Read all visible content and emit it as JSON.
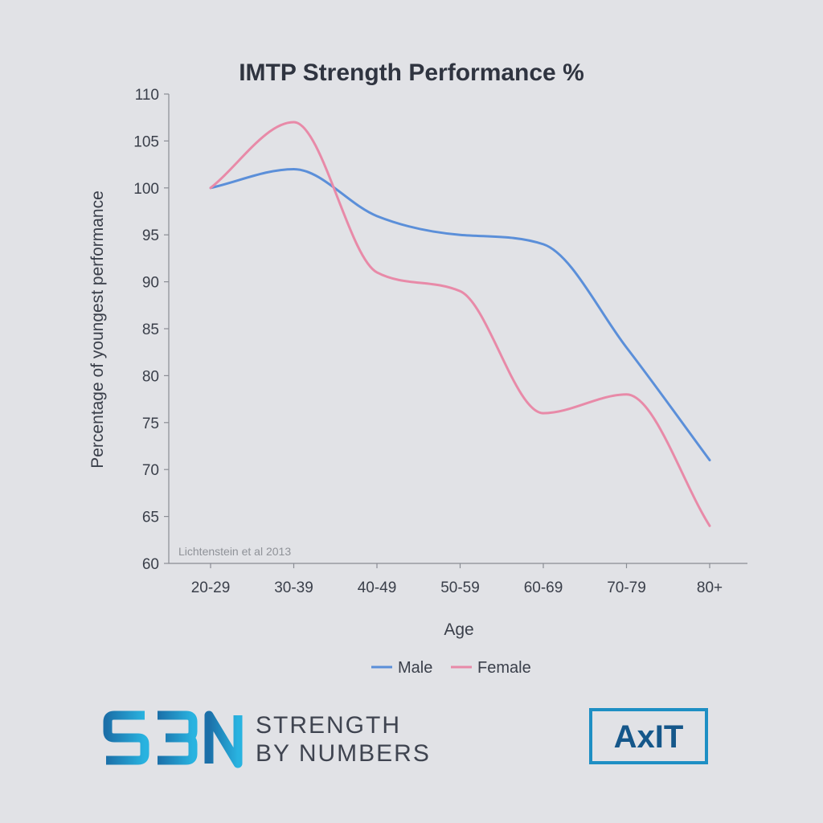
{
  "chart_data": {
    "type": "line",
    "title": "IMTP Strength Performance %",
    "xlabel": "Age",
    "ylabel": "Percentage of youngest performance",
    "categories": [
      "20-29",
      "30-39",
      "40-49",
      "50-59",
      "60-69",
      "70-79",
      "80+"
    ],
    "ylim": [
      60,
      110
    ],
    "yticks": [
      60,
      65,
      70,
      75,
      80,
      85,
      90,
      95,
      100,
      105,
      110
    ],
    "smooth": true,
    "grid": false,
    "legend_position": "bottom",
    "annotation": "Lichtenstein et al 2013",
    "series": [
      {
        "name": "Male",
        "color": "#5b8fd9",
        "values": [
          100,
          102,
          97,
          95,
          94,
          83,
          71
        ]
      },
      {
        "name": "Female",
        "color": "#e88aa8",
        "values": [
          100,
          107,
          91,
          89,
          76,
          78,
          64
        ]
      }
    ]
  },
  "branding": {
    "sbn_mark": "SBN",
    "sbn_line1": "STRENGTH",
    "sbn_line2": "BY NUMBERS",
    "axit_mark": "AxIT"
  },
  "colors": {
    "background": "#e1e2e6",
    "text": "#3a3f4a",
    "axis": "#8a8d94",
    "brand_blue": "#1e8fc4"
  }
}
